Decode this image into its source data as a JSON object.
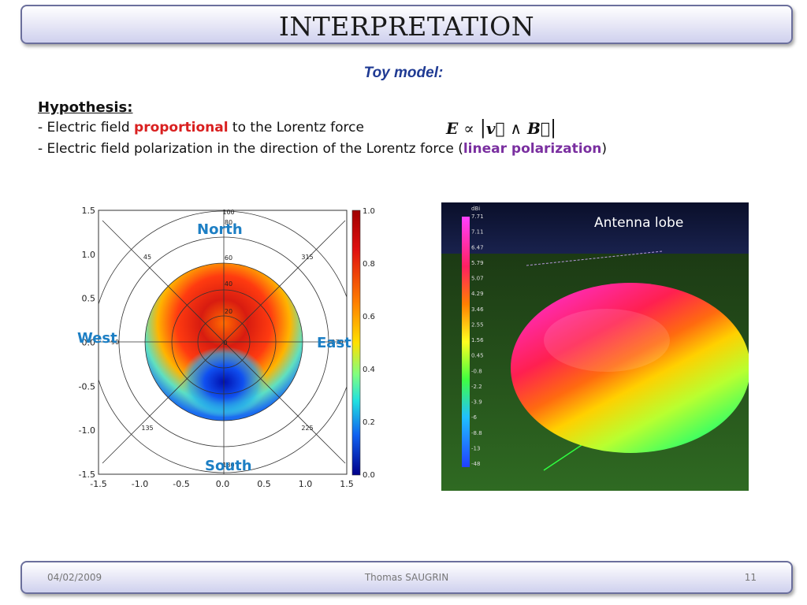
{
  "slide": {
    "title": "INTERPRETATION",
    "subtitle": "Toy model:",
    "hypothesis_heading": "Hypothesis:",
    "line1_prefix": "- Electric field ",
    "line1_highlight": "proportional",
    "line1_suffix": " to the Lorentz force",
    "line2_prefix": "- Electric field polarization in the direction of the Lorentz force ",
    "line2_open": "(",
    "line2_highlight": "linear polarization",
    "line2_close": ")",
    "formula": {
      "lhs": "E",
      "op": "∝",
      "bar": "|",
      "v": "v⃗",
      "wedge": "∧",
      "B": "B⃗"
    }
  },
  "polar_map": {
    "direction_labels": {
      "north": "North",
      "south": "South",
      "east": "East",
      "west": "West"
    },
    "zenith_labels": [
      "100",
      "80",
      "60",
      "40",
      "20",
      "0"
    ],
    "azimuth_labels": [
      "45",
      "315",
      "135",
      "225",
      "90",
      "270",
      "180"
    ],
    "colorbar_ticks": [
      "1.0",
      "0.8",
      "0.6",
      "0.4",
      "0.2",
      "0.0"
    ]
  },
  "chart_data": {
    "type": "heatmap",
    "title": "",
    "xlabel": "",
    "ylabel": "",
    "xlim": [
      -1.5,
      1.5
    ],
    "ylim": [
      -1.5,
      1.5
    ],
    "x_ticks": [
      "-1.5",
      "-1.0",
      "-0.5",
      "0.0",
      "0.5",
      "1.0",
      "1.5"
    ],
    "y_ticks": [
      "1.5",
      "1.0",
      "0.5",
      "0.0",
      "-0.5",
      "-1.0",
      "-1.5"
    ],
    "colorbar_range": [
      0.0,
      1.0
    ],
    "grid": true
  },
  "antenna": {
    "label": "Antenna lobe",
    "unit": "dBi",
    "scale_ticks": [
      "7.71",
      "7.11",
      "6.47",
      "5.79",
      "5.07",
      "4.29",
      "3.46",
      "2.55",
      "1.56",
      "0.45",
      "-0.8",
      "-2.2",
      "-3.9",
      "-6",
      "-8.8",
      "-13",
      "-48"
    ]
  },
  "footer": {
    "date": "04/02/2009",
    "author": "Thomas SAUGRIN",
    "page": "11"
  }
}
